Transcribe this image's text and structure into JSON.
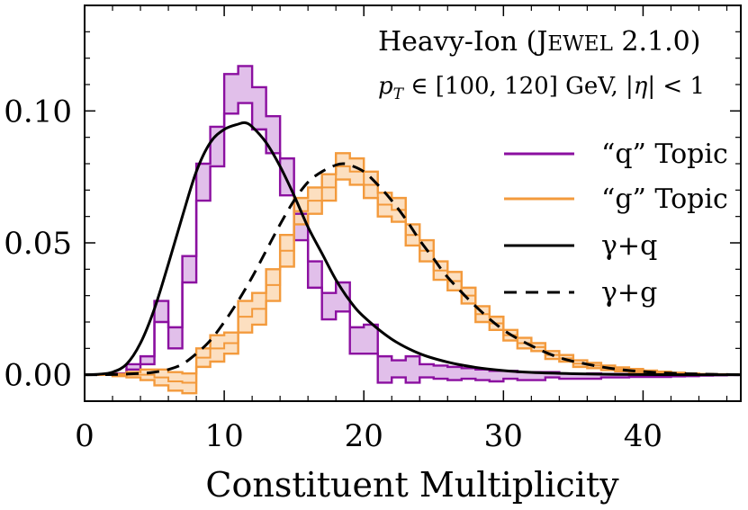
{
  "chart_data": {
    "type": "line",
    "title": "",
    "xlabel": "Constituent Multiplicity",
    "ylabel": "",
    "xlim": [
      0,
      47
    ],
    "ylim": [
      -0.01,
      0.14
    ],
    "x_ticks": [
      0,
      10,
      20,
      30,
      40
    ],
    "x_tick_labels": [
      "0",
      "10",
      "20",
      "30",
      "40"
    ],
    "y_ticks": [
      0.0,
      0.05,
      0.1
    ],
    "y_tick_labels": [
      "0.00",
      "0.05",
      "0.10"
    ],
    "annotations": {
      "line1_prefix": "Heavy-Ion (",
      "line1_smallcaps_big": "J",
      "line1_smallcaps_small": "EWEL",
      "line1_suffix": " 2.1.0)",
      "line2_p": "p",
      "line2_sub": "T",
      "line2_rest": " ∈ [100, 120] GeV, |",
      "line2_eta": "η",
      "line2_end": "| < 1"
    },
    "legend": {
      "position": "right",
      "entries": [
        {
          "label": "“q” Topic",
          "series": "q_topic"
        },
        {
          "label": "“g” Topic",
          "series": "g_topic"
        },
        {
          "label": "γ+q",
          "series": "gamma_q"
        },
        {
          "label": "γ+g",
          "series": "gamma_g"
        }
      ]
    },
    "series": [
      {
        "name": "q_topic",
        "style": "step-band",
        "color": "#8b0fa0",
        "fill": "#dcb4e6",
        "bin_width": 1,
        "x_start": 0,
        "upper": [
          0.0,
          0.0,
          0.0005,
          0.004,
          0.007,
          0.028,
          0.018,
          0.045,
          0.08,
          0.094,
          0.114,
          0.117,
          0.109,
          0.098,
          0.082,
          0.061,
          0.043,
          0.031,
          0.035,
          0.018,
          0.019,
          0.007,
          0.0055,
          0.007,
          0.004,
          0.0035,
          0.003,
          0.0025,
          0.002,
          0.0015,
          0.0015,
          0.001,
          0.001,
          0.001,
          0.0005,
          0.0003,
          0.0005,
          0.0003,
          0.0003,
          0.0002,
          0.0002,
          0.0002,
          0.0002,
          0.0005,
          0.0001,
          0.0001,
          0.0001
        ],
        "lower": [
          0.0,
          0.0,
          0.0,
          0.002,
          0.004,
          0.02,
          0.01,
          0.035,
          0.066,
          0.079,
          0.099,
          0.103,
          0.093,
          0.084,
          0.068,
          0.051,
          0.033,
          0.021,
          0.024,
          0.008,
          0.008,
          -0.003,
          -0.001,
          -0.003,
          -0.001,
          -0.0015,
          -0.002,
          -0.0015,
          -0.002,
          -0.0025,
          -0.0015,
          -0.002,
          -0.002,
          -0.001,
          -0.0015,
          -0.0015,
          -0.0015,
          -0.001,
          -0.001,
          -0.0008,
          -0.0008,
          -0.0008,
          -0.0006,
          -0.0005,
          -0.0003,
          -0.0002,
          -0.0001
        ]
      },
      {
        "name": "g_topic",
        "style": "step-band",
        "color": "#f39a3c",
        "fill": "#fbd9b5",
        "bin_width": 1,
        "x_start": 0,
        "upper": [
          0.0,
          0.0,
          0.0003,
          0.001,
          0.002,
          0.002,
          0.001,
          0.0005,
          0.01,
          0.015,
          0.016,
          0.028,
          0.031,
          0.04,
          0.053,
          0.067,
          0.071,
          0.076,
          0.084,
          0.082,
          0.077,
          0.069,
          0.067,
          0.057,
          0.051,
          0.043,
          0.039,
          0.033,
          0.026,
          0.022,
          0.017,
          0.014,
          0.012,
          0.009,
          0.0075,
          0.0055,
          0.0045,
          0.0035,
          0.0028,
          0.0022,
          0.0016,
          0.0012,
          0.0008,
          0.0005,
          0.0003,
          0.0002,
          0.0001
        ],
        "lower": [
          0.0,
          0.0,
          -0.0005,
          -0.001,
          -0.002,
          -0.004,
          -0.006,
          -0.007,
          0.003,
          0.005,
          0.008,
          0.016,
          0.019,
          0.028,
          0.041,
          0.057,
          0.061,
          0.066,
          0.074,
          0.072,
          0.067,
          0.06,
          0.058,
          0.049,
          0.043,
          0.036,
          0.032,
          0.027,
          0.02,
          0.017,
          0.013,
          0.01,
          0.009,
          0.006,
          0.005,
          0.003,
          0.0025,
          0.0018,
          0.0013,
          0.001,
          0.0006,
          0.0004,
          0.0003,
          0.0002,
          0.0001,
          0.0001,
          0.0
        ],
        "center": [
          0.0,
          0.0,
          -0.0001,
          0.0,
          0.0,
          -0.001,
          -0.0025,
          -0.003,
          0.0065,
          0.01,
          0.012,
          0.022,
          0.025,
          0.034,
          0.047,
          0.062,
          0.066,
          0.071,
          0.079,
          0.077,
          0.072,
          0.0645,
          0.0625,
          0.053,
          0.047,
          0.0395,
          0.0355,
          0.03,
          0.023,
          0.0195,
          0.015,
          0.012,
          0.0105,
          0.0075,
          0.00625,
          0.00425,
          0.0035,
          0.00265,
          0.00205,
          0.0016,
          0.0011,
          0.0008,
          0.00055,
          0.00035,
          0.0002,
          0.00015,
          5e-05
        ]
      },
      {
        "name": "gamma_q",
        "style": "solid",
        "color": "#000000",
        "x": [
          0,
          1,
          2,
          3,
          4,
          5,
          6,
          7,
          8,
          9,
          10,
          11,
          11.5,
          12,
          13,
          14,
          15,
          16,
          17,
          18,
          19,
          20,
          22,
          24,
          26,
          28,
          30,
          32,
          35,
          38,
          41,
          44,
          47
        ],
        "y": [
          0.0,
          0.0002,
          0.001,
          0.004,
          0.012,
          0.025,
          0.042,
          0.06,
          0.077,
          0.088,
          0.093,
          0.095,
          0.0955,
          0.094,
          0.088,
          0.079,
          0.068,
          0.056,
          0.046,
          0.036,
          0.028,
          0.022,
          0.0135,
          0.008,
          0.0048,
          0.0028,
          0.0016,
          0.0009,
          0.0004,
          0.00015,
          6e-05,
          2e-05,
          0.0
        ]
      },
      {
        "name": "gamma_g",
        "style": "dashed",
        "color": "#000000",
        "x": [
          0,
          2,
          4,
          5,
          6,
          7,
          8,
          9,
          10,
          11,
          12,
          13,
          14,
          15,
          16,
          17,
          18,
          18.5,
          19,
          20,
          21,
          22,
          23,
          24,
          25,
          26,
          28,
          30,
          32,
          34,
          36,
          38,
          40,
          42,
          44,
          47
        ],
        "y": [
          0.0,
          0.0001,
          0.0005,
          0.001,
          0.002,
          0.004,
          0.008,
          0.013,
          0.02,
          0.028,
          0.037,
          0.047,
          0.057,
          0.066,
          0.073,
          0.077,
          0.0795,
          0.08,
          0.0795,
          0.077,
          0.072,
          0.066,
          0.059,
          0.051,
          0.044,
          0.037,
          0.026,
          0.017,
          0.011,
          0.0065,
          0.004,
          0.0022,
          0.0012,
          0.0006,
          0.0003,
          0.0
        ]
      }
    ]
  }
}
